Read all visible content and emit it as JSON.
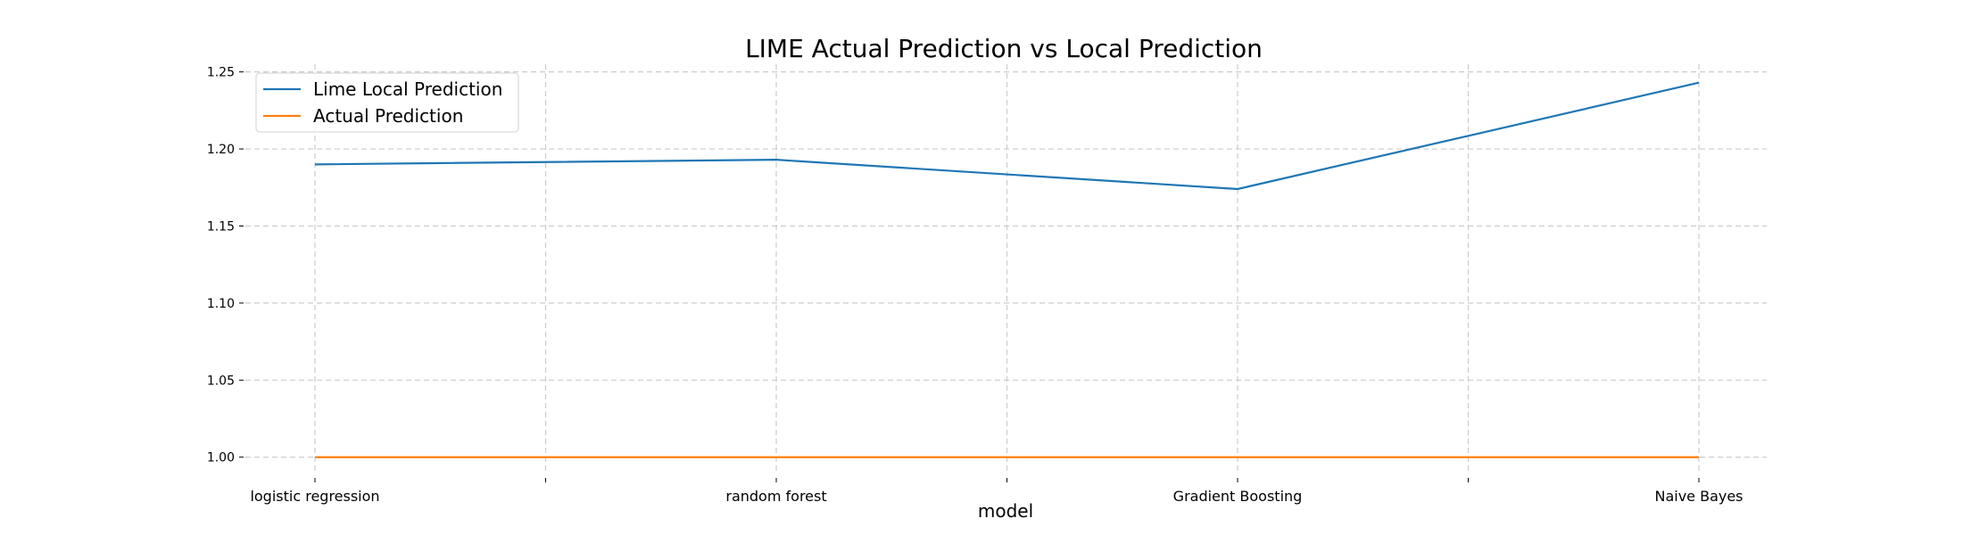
{
  "chart_data": {
    "type": "line",
    "title": "LIME Actual Prediction vs Local Prediction",
    "xlabel": "model",
    "ylabel": "",
    "categories": [
      "logistic regression",
      "random forest",
      "Gradient Boosting",
      "Naive Bayes"
    ],
    "minor_ticks": true,
    "yticks": [
      1.0,
      1.05,
      1.1,
      1.15,
      1.2,
      1.25
    ],
    "ytick_labels": [
      "1.00",
      "1.05",
      "1.10",
      "1.15",
      "1.20",
      "1.25"
    ],
    "ylim": [
      0.99,
      1.255
    ],
    "grid": true,
    "legend_position": "top-left",
    "series": [
      {
        "name": "Lime Local Prediction",
        "values": [
          1.19,
          1.193,
          1.174,
          1.243
        ],
        "color": "#1f77b4"
      },
      {
        "name": "Actual Prediction",
        "values": [
          1.0,
          1.0,
          1.0,
          1.0
        ],
        "color": "#ff7f0e"
      }
    ]
  }
}
